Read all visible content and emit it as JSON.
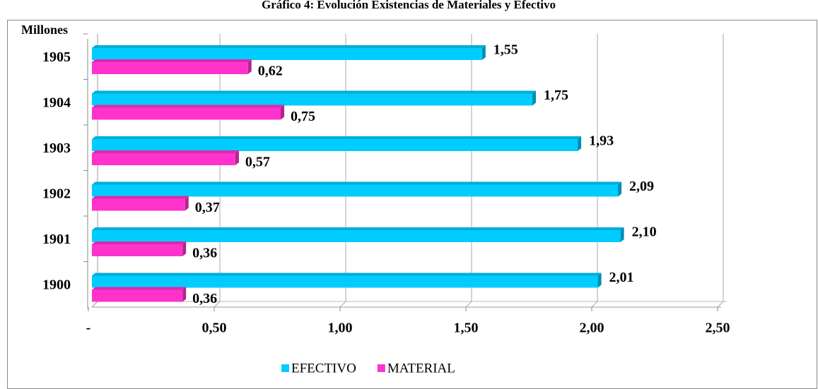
{
  "chart_data": {
    "type": "hbar",
    "title": "Gráfico 4: Evolución Existencias de Materiales y Efectivo",
    "axis_label": "Millones",
    "categories": [
      "1900",
      "1901",
      "1902",
      "1903",
      "1904",
      "1905"
    ],
    "series": [
      {
        "name": "EFECTIVO",
        "color": "#00ccff",
        "values": [
          2.01,
          2.1,
          2.09,
          1.93,
          1.75,
          1.55
        ],
        "value_labels": [
          "2,01",
          "2,10",
          "2,09",
          "1,93",
          "1,75",
          "1,55"
        ]
      },
      {
        "name": "MATERIAL",
        "color": "#ff33cc",
        "values": [
          0.36,
          0.36,
          0.37,
          0.57,
          0.75,
          0.62
        ],
        "value_labels": [
          "0,36",
          "0,36",
          "0,37",
          "0,57",
          "0,75",
          "0,62"
        ]
      }
    ],
    "xlim": [
      0,
      2.5
    ],
    "xticks": [
      {
        "value": 0,
        "label": "-"
      },
      {
        "value": 0.5,
        "label": "0,50"
      },
      {
        "value": 1,
        "label": "1,00"
      },
      {
        "value": 1.5,
        "label": "1,50"
      },
      {
        "value": 2,
        "label": "2,00"
      },
      {
        "value": 2.5,
        "label": "2,50"
      }
    ],
    "grid": true,
    "legend": "bottom"
  }
}
